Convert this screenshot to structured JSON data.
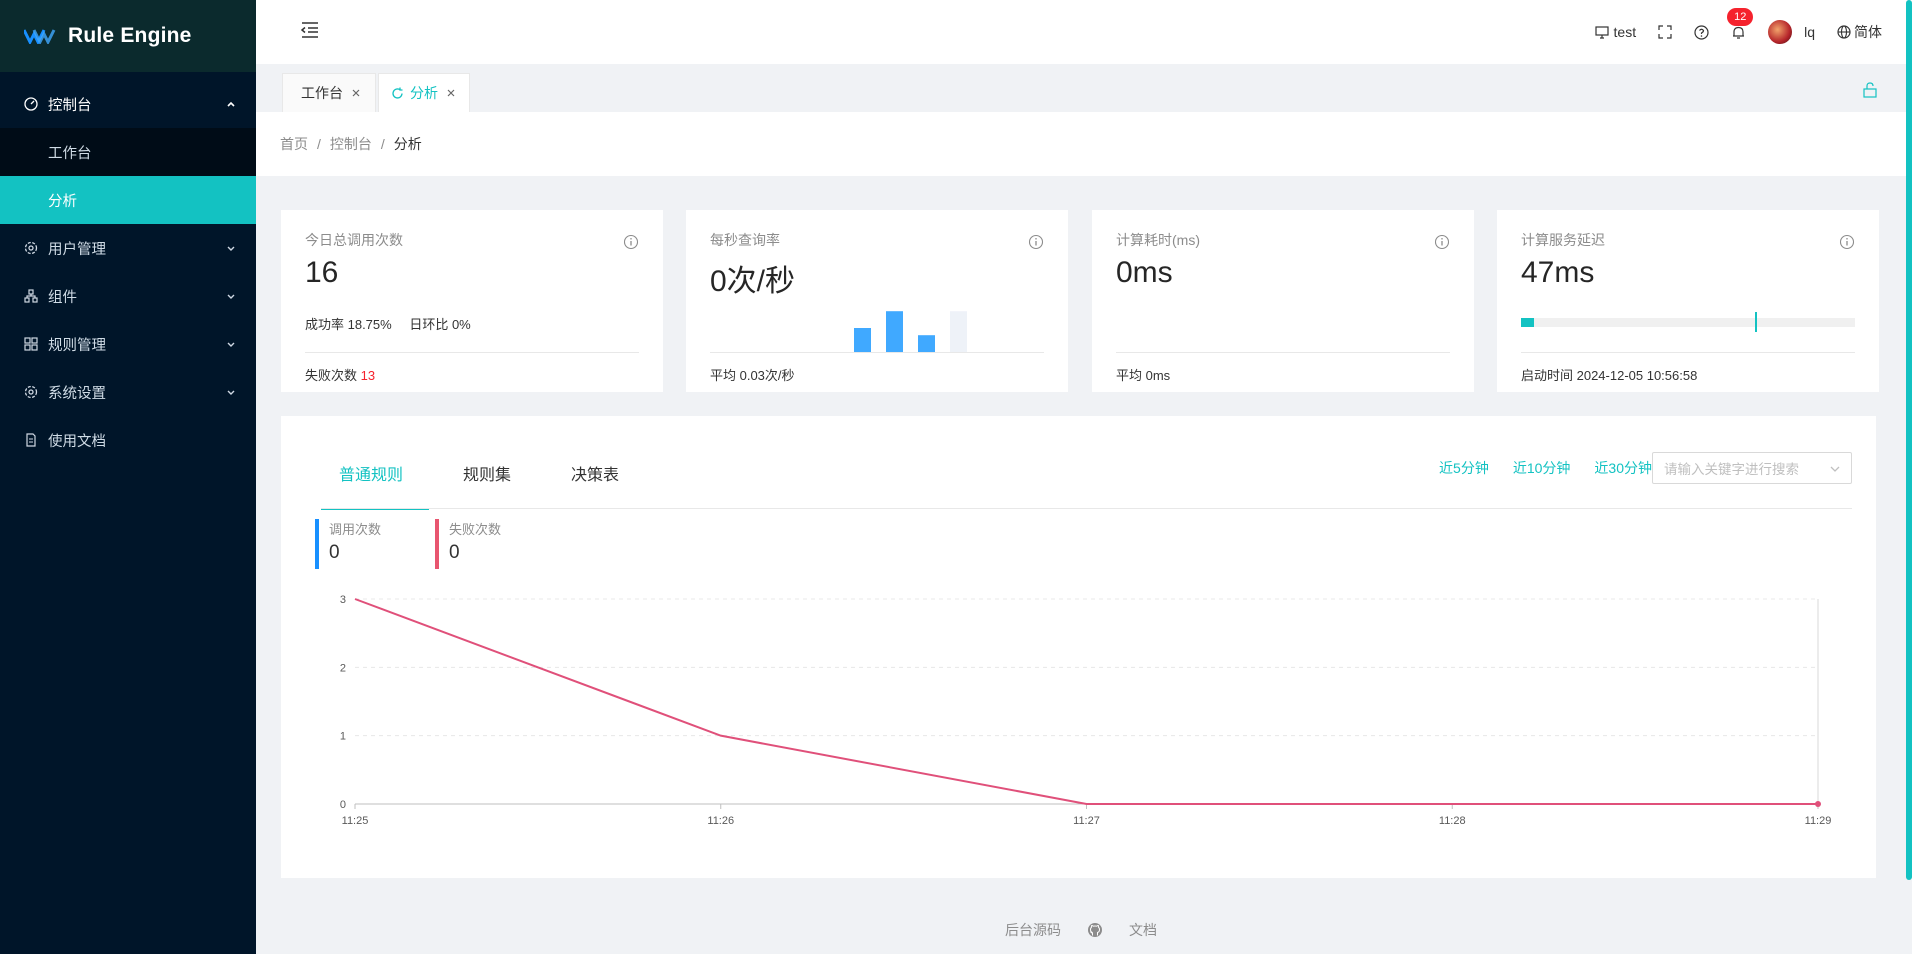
{
  "app": {
    "title": "Rule Engine"
  },
  "sidebar": {
    "items": [
      {
        "label": "控制台",
        "icon": "dashboard-icon"
      },
      {
        "label": "用户管理",
        "icon": "gear-icon"
      },
      {
        "label": "组件",
        "icon": "cluster-icon"
      },
      {
        "label": "规则管理",
        "icon": "grid-icon"
      },
      {
        "label": "系统设置",
        "icon": "gear-icon"
      },
      {
        "label": "使用文档",
        "icon": "document-icon"
      }
    ],
    "sub": [
      {
        "label": "工作台"
      },
      {
        "label": "分析"
      }
    ]
  },
  "header": {
    "workspace": "test",
    "notification_count": "12",
    "username": "lq",
    "language": "简体"
  },
  "tabs": [
    {
      "label": "工作台"
    },
    {
      "label": "分析"
    }
  ],
  "breadcrumb": [
    "首页",
    "控制台",
    "分析"
  ],
  "cards": [
    {
      "title": "今日总调用次数",
      "value": "16",
      "success_label": "成功率 18.75%",
      "dod_label": "日环比 0%",
      "fail_label": "失败次数",
      "fail_value": "13"
    },
    {
      "title": "每秒查询率",
      "value": "0次/秒",
      "footer": "平均 0.03次/秒",
      "mini_bars": [
        0.5,
        0.85,
        0.35,
        0.85
      ]
    },
    {
      "title": "计算耗时(ms)",
      "value": "0ms",
      "footer": "平均 0ms"
    },
    {
      "title": "计算服务延迟",
      "value": "47ms",
      "footer": "启动时间 2024-12-05 10:56:58",
      "progress": 0.04,
      "target": 0.7
    }
  ],
  "main": {
    "tabs": [
      "普通规则",
      "规则集",
      "决策表"
    ],
    "ranges": [
      "近5分钟",
      "近10分钟",
      "近30分钟"
    ],
    "search_placeholder": "请输入关键字进行搜索",
    "stats": [
      {
        "label": "调用次数",
        "value": "0",
        "color": "#1890ff"
      },
      {
        "label": "失败次数",
        "value": "0",
        "color": "#e8556f"
      }
    ]
  },
  "chart_data": {
    "type": "line",
    "x": [
      "11:25",
      "11:26",
      "11:27",
      "11:28",
      "11:29"
    ],
    "series": [
      {
        "values": [
          3,
          1,
          0,
          0,
          0
        ],
        "color": "#e0507a"
      }
    ],
    "yticks": [
      0,
      1,
      2,
      3
    ],
    "ylim": [
      0,
      3
    ],
    "grid": true
  },
  "footer": {
    "links": [
      "后台源码",
      "文档"
    ],
    "icon": "github-icon"
  },
  "colors": {
    "accent": "#13c2c2",
    "sidebar": "#001529",
    "danger": "#f5222d",
    "bar_blue": "#40a9ff"
  }
}
